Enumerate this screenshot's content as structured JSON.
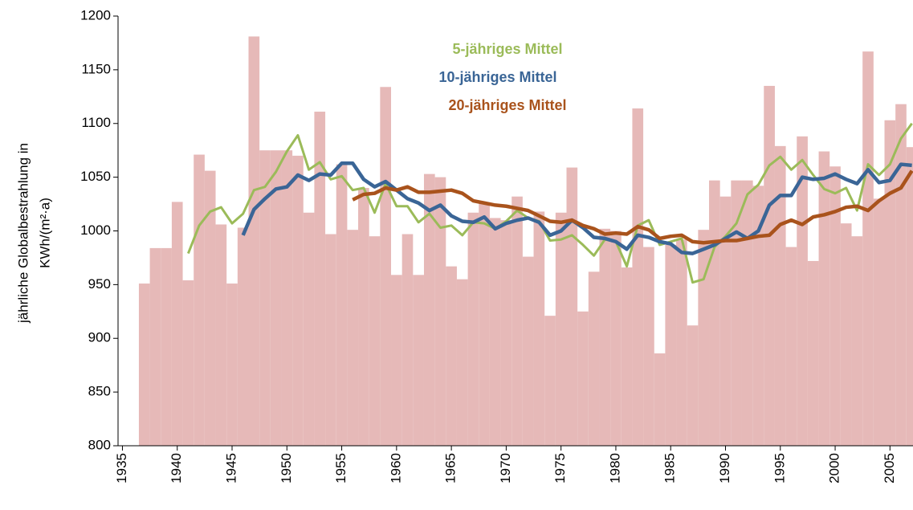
{
  "chart_data": {
    "type": "combo",
    "ylabel": [
      "jährliche Globalbestrahlung in",
      "KWh/(m²·a)"
    ],
    "x": [
      1937,
      1938,
      1939,
      1940,
      1941,
      1942,
      1943,
      1944,
      1945,
      1946,
      1947,
      1948,
      1949,
      1950,
      1951,
      1952,
      1953,
      1954,
      1955,
      1956,
      1957,
      1958,
      1959,
      1960,
      1961,
      1962,
      1963,
      1964,
      1965,
      1966,
      1967,
      1968,
      1969,
      1970,
      1971,
      1972,
      1973,
      1974,
      1975,
      1976,
      1977,
      1978,
      1979,
      1980,
      1981,
      1982,
      1983,
      1984,
      1985,
      1986,
      1987,
      1988,
      1989,
      1990,
      1991,
      1992,
      1993,
      1994,
      1995,
      1996,
      1997,
      1998,
      1999,
      2000,
      2001,
      2002,
      2003,
      2004,
      2005,
      2006,
      2007
    ],
    "series": [
      {
        "type": "bar",
        "color": "#e6b9b8",
        "values": [
          951,
          984,
          984,
          1027,
          954,
          1071,
          1056,
          1006,
          951,
          1003,
          1181,
          1075,
          1075,
          1075,
          1070,
          1017,
          1111,
          997,
          1062,
          1001,
          1040,
          995,
          1134,
          959,
          997,
          959,
          1053,
          1050,
          967,
          955,
          1017,
          1026,
          1012,
          1010,
          1032,
          976,
          1018,
          921,
          1017,
          1059,
          925,
          962,
          1002,
          1000,
          966,
          1114,
          985,
          886,
          987,
          992,
          912,
          1001,
          1047,
          1032,
          1047,
          1047,
          1042,
          1135,
          1079,
          985,
          1088,
          972,
          1074,
          1060,
          1007,
          995,
          1167,
          1030,
          1103,
          1118,
          1078
        ]
      },
      {
        "type": "line",
        "name": "5-jähriges Mittel",
        "color": "#9bbb59",
        "width": 3,
        "values": [
          null,
          null,
          null,
          null,
          979,
          1005,
          1018,
          1022,
          1007,
          1016,
          1038,
          1041,
          1055,
          1074,
          1089,
          1057,
          1064,
          1048,
          1051,
          1038,
          1040,
          1017,
          1044,
          1023,
          1023,
          1008,
          1016,
          1003,
          1005,
          996,
          1008,
          1007,
          1002,
          1009,
          1019,
          1012,
          1009,
          991,
          992,
          996,
          987,
          977,
          992,
          990,
          967,
          1005,
          1010,
          987,
          990,
          993,
          952,
          955,
          985,
          995,
          1007,
          1034,
          1043,
          1061,
          1069,
          1057,
          1066,
          1052,
          1039,
          1035,
          1040,
          1019,
          1062,
          1052,
          1062,
          1086,
          1100
        ]
      },
      {
        "type": "line",
        "name": "10-jähriges Mittel",
        "color": "#3a6596",
        "width": 4.5,
        "values": [
          null,
          null,
          null,
          null,
          null,
          null,
          null,
          null,
          null,
          996,
          1020,
          1030,
          1039,
          1041,
          1052,
          1047,
          1053,
          1052,
          1063,
          1063,
          1048,
          1041,
          1046,
          1038,
          1030,
          1026,
          1019,
          1024,
          1014,
          1009,
          1008,
          1013,
          1002,
          1007,
          1010,
          1012,
          1008,
          996,
          1000,
          1010,
          1003,
          994,
          993,
          990,
          983,
          996,
          994,
          990,
          988,
          980,
          979,
          983,
          987,
          993,
          999,
          993,
          1000,
          1024,
          1033,
          1033,
          1050,
          1048,
          1049,
          1053,
          1048,
          1044,
          1057,
          1045,
          1047,
          1062,
          1061
        ]
      },
      {
        "type": "line",
        "name": "20-jähriges Mittel",
        "color": "#a9531c",
        "width": 4.5,
        "values": [
          null,
          null,
          null,
          null,
          null,
          null,
          null,
          null,
          null,
          null,
          null,
          null,
          null,
          null,
          null,
          null,
          null,
          null,
          null,
          1029,
          1034,
          1035,
          1040,
          1038,
          1041,
          1036,
          1036,
          1037,
          1038,
          1035,
          1028,
          1026,
          1024,
          1023,
          1021,
          1019,
          1014,
          1009,
          1008,
          1010,
          1005,
          1002,
          997,
          998,
          997,
          1004,
          1001,
          993,
          995,
          996,
          990,
          989,
          990,
          991,
          991,
          993,
          995,
          996,
          1006,
          1010,
          1006,
          1013,
          1015,
          1018,
          1022,
          1023,
          1019,
          1028,
          1035,
          1040,
          1056
        ]
      }
    ],
    "xlim": [
      1934.6,
      2007.1
    ],
    "xticks": [
      1935,
      1940,
      1945,
      1950,
      1955,
      1960,
      1965,
      1970,
      1975,
      1980,
      1985,
      1990,
      1995,
      2000,
      2005
    ],
    "ylim": [
      800,
      1200
    ],
    "yticks": [
      800,
      850,
      900,
      950,
      1000,
      1050,
      1100,
      1150,
      1200
    ],
    "grid": false,
    "legend": "top"
  }
}
